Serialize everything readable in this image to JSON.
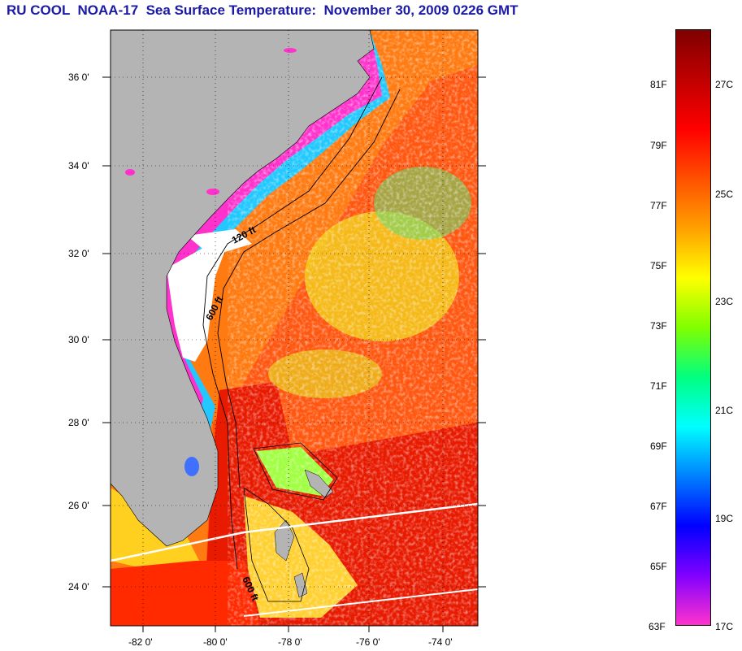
{
  "title": "RU COOL  NOAA-17  Sea Surface Temperature:  November 30, 2009 0226 GMT",
  "map": {
    "lat_labels": [
      "36 0'",
      "34 0'",
      "32 0'",
      "30 0'",
      "28 0'",
      "26 0'",
      "24 0'"
    ],
    "lon_labels": [
      "-82 0'",
      "-80 0'",
      "-78 0'",
      "-76 0'",
      "-74 0'"
    ],
    "isobath_labels": [
      "120 ft",
      "600 ft",
      "600 ft"
    ],
    "colors": {
      "land": "#b4b4b4",
      "cloud": "#ffffff",
      "cold_coastal": "#ff33cc",
      "frame": "#000000"
    }
  },
  "colorbar": {
    "fahrenheit_labels": [
      "81F",
      "79F",
      "77F",
      "75F",
      "73F",
      "71F",
      "69F",
      "67F",
      "65F",
      "63F"
    ],
    "celsius_labels": [
      "27C",
      "25C",
      "23C",
      "21C",
      "19C",
      "17C"
    ],
    "gradient_stops": [
      "#ff33cc",
      "#8000ff",
      "#0000ff",
      "#0080ff",
      "#00ffff",
      "#00ff80",
      "#80ff00",
      "#ffff00",
      "#ffa000",
      "#ff5000",
      "#ff0000",
      "#c00000",
      "#800000"
    ]
  }
}
